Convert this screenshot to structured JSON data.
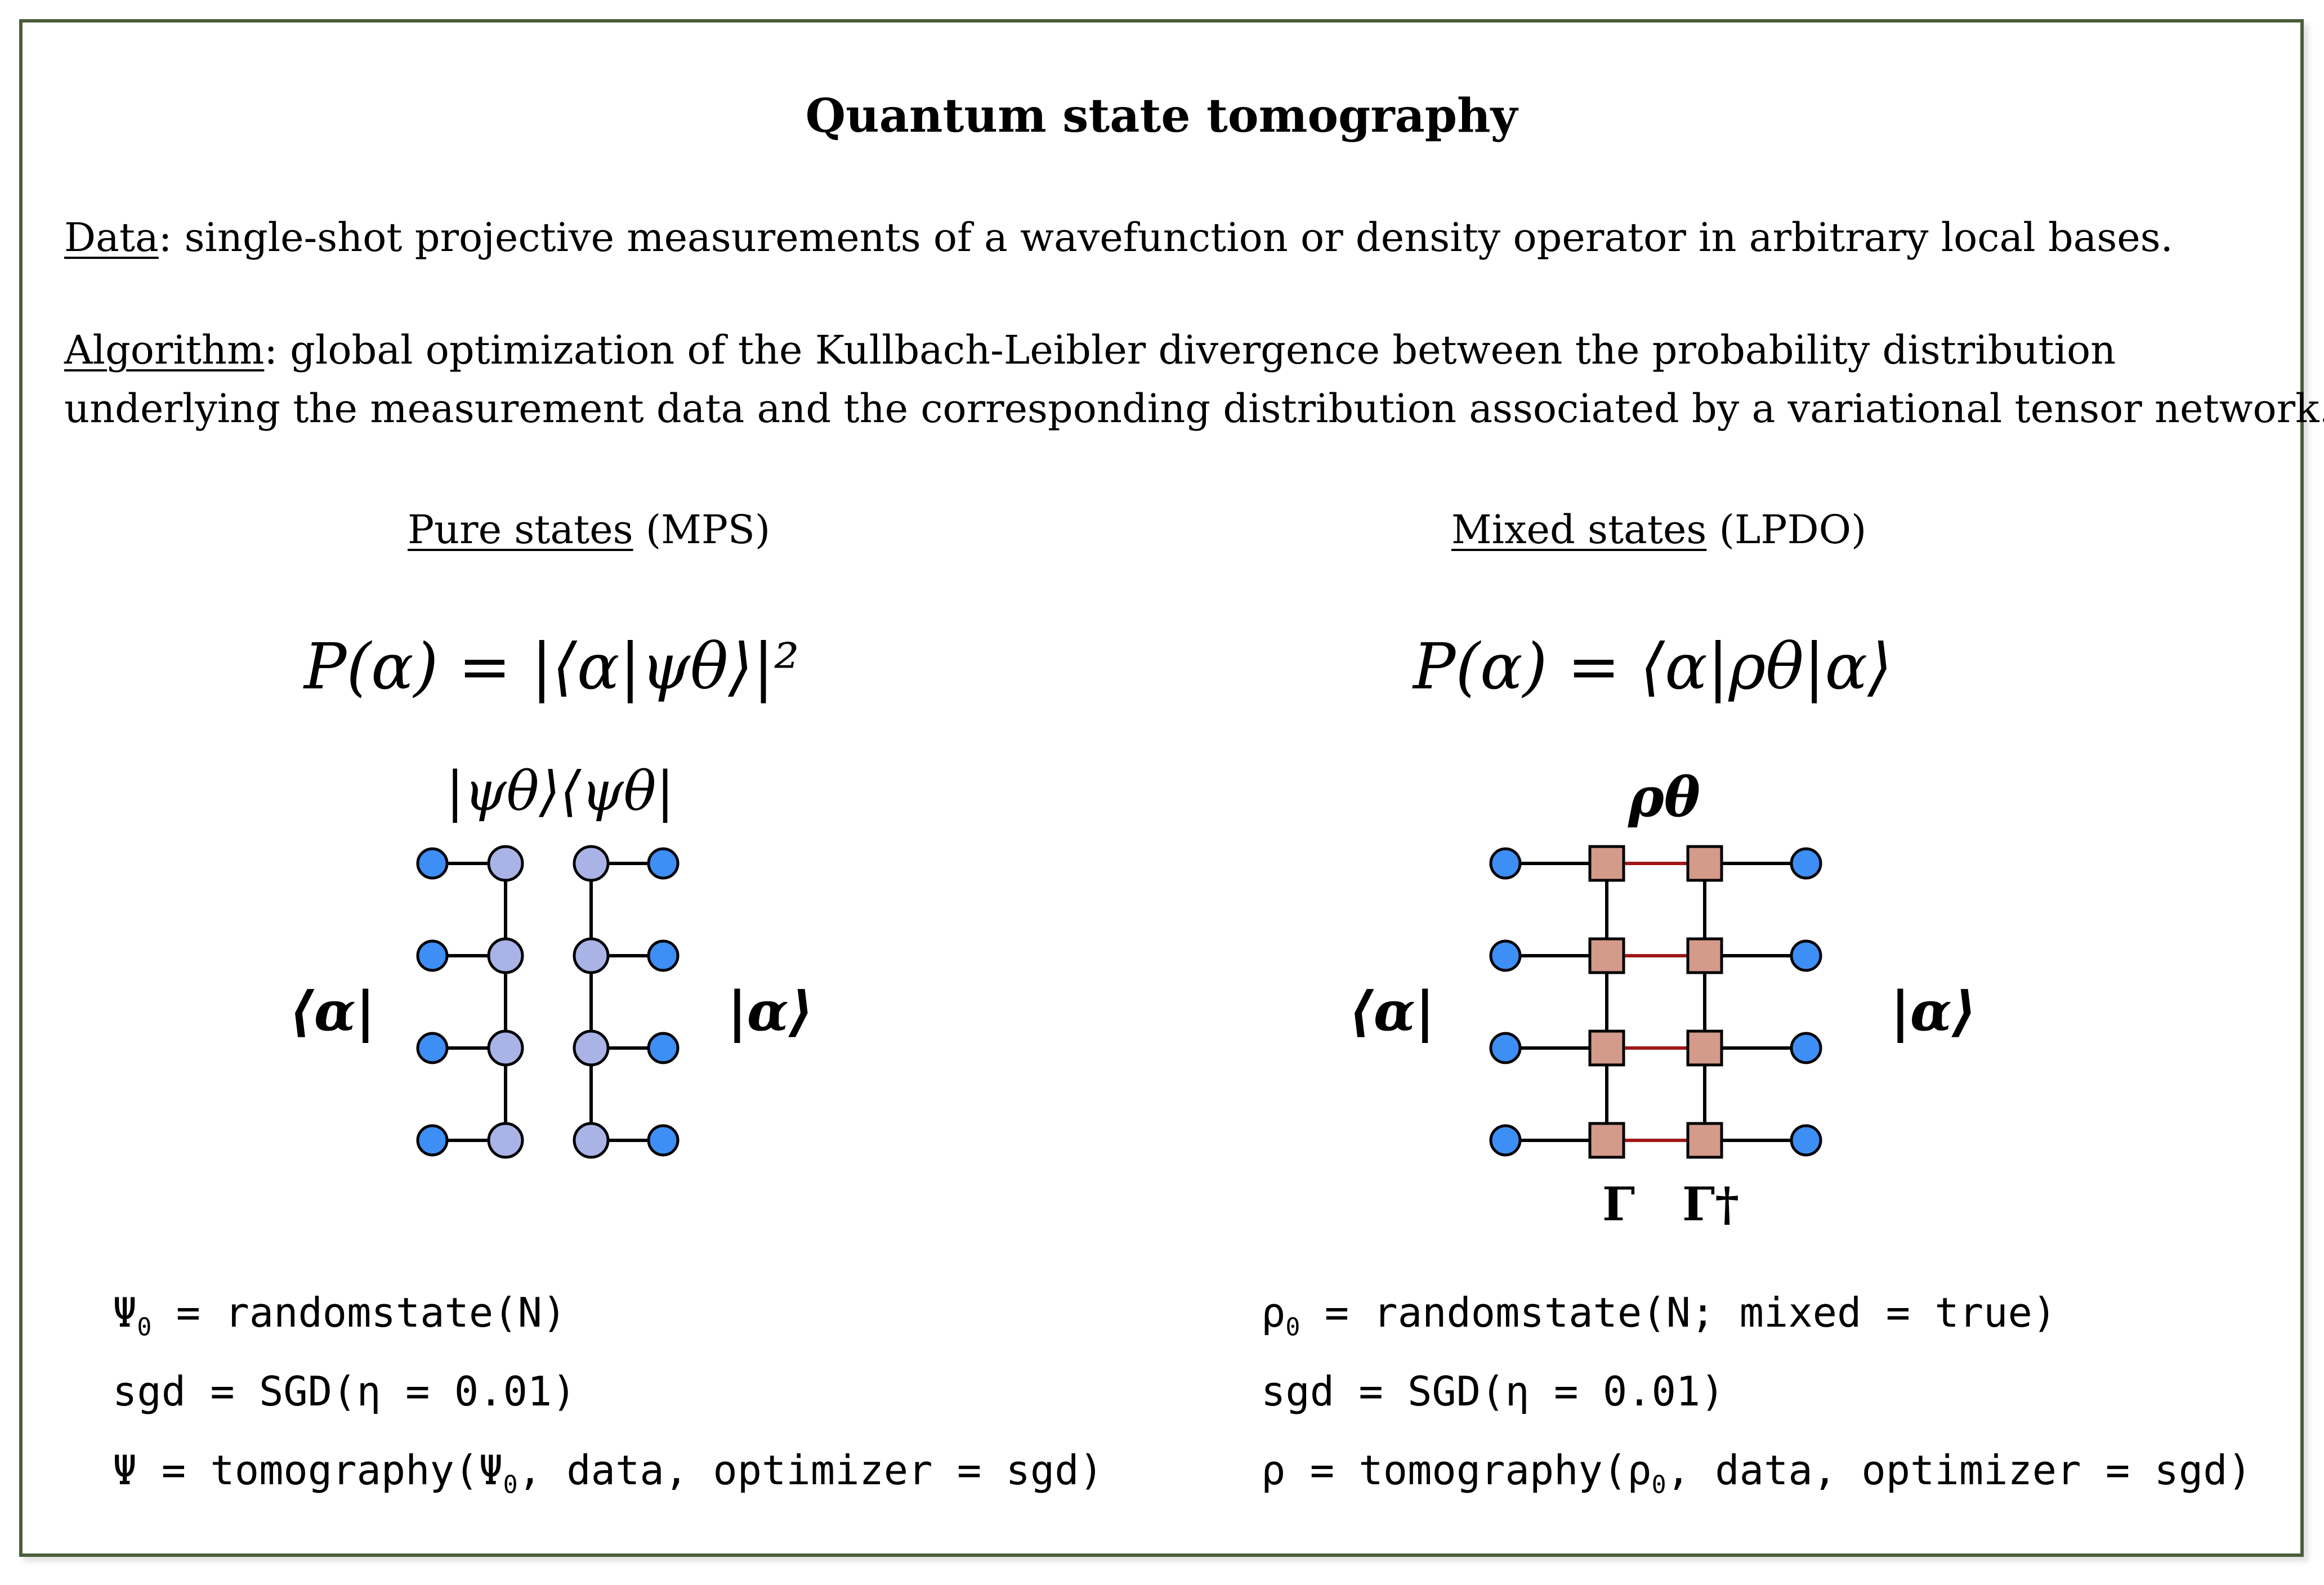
{
  "title": "Quantum state tomography",
  "data_label": "Data",
  "data_text": ": single-shot projective measurements of a wavefunction or density operator in arbitrary local bases.",
  "algorithm_label": "Algorithm",
  "algorithm_line1": ": global optimization of the Kullbach-Leibler divergence between the probability distribution",
  "algorithm_line2": "underlying the measurement data and the corresponding distribution associated by a variational tensor network.",
  "pure": {
    "heading_label": "Pure states",
    "heading_suffix": " (MPS)",
    "formula": "P(α) = |⟨α|ψθ⟩|²",
    "top_label": "|ψθ⟩⟨ψθ|",
    "left_label": "⟨α|",
    "right_label": "|α⟩",
    "code": [
      {
        "symbol": "Ψ",
        "sub": "0",
        "rest": " = randomstate(N)"
      },
      {
        "symbol": "",
        "sub": "",
        "rest": "sgd = SGD(η = 0.01)"
      },
      {
        "symbol": "Ψ = tomography(Ψ",
        "sub": "0",
        "rest": ", data, optimizer = sgd)"
      }
    ]
  },
  "mixed": {
    "heading_label": "Mixed states",
    "heading_suffix": " (LPDO)",
    "formula": "P(α) = ⟨α|ρθ|α⟩",
    "top_label": "ρθ",
    "left_label": "⟨α|",
    "right_label": "|α⟩",
    "bottom_left_label": "Γ",
    "bottom_right_label": "Γ†",
    "code": [
      {
        "symbol": "ρ",
        "sub": "0",
        "rest": " = randomstate(N; mixed = true)"
      },
      {
        "symbol": "",
        "sub": "",
        "rest": "sgd = SGD(η = 0.01)"
      },
      {
        "symbol": "ρ = tomography(ρ",
        "sub": "0",
        "rest": ", data, optimizer = sgd)"
      }
    ]
  },
  "colors": {
    "frame": "#4a5d3a",
    "site_blue": "#3d8ef5",
    "mps_tensor": "#a9b3e6",
    "lpdo_tensor": "#d49a8a",
    "kraus_bond": "#a01818"
  },
  "rows": 4
}
